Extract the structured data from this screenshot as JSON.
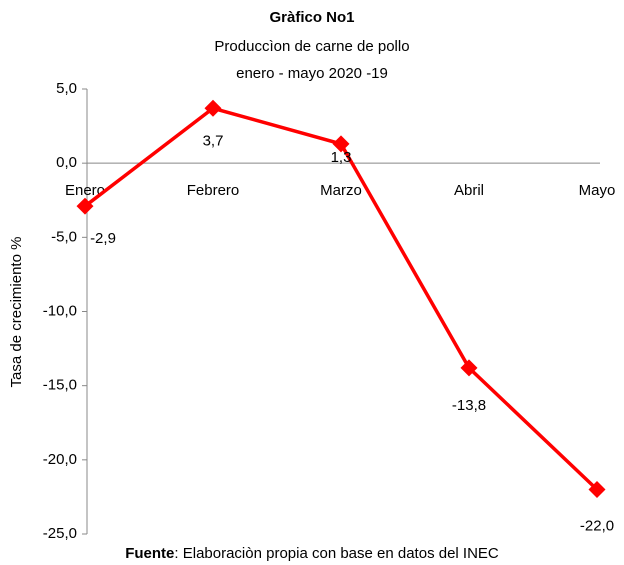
{
  "chart_data": {
    "type": "line",
    "title": "Gràfico No1",
    "subtitle": [
      "Produccìon de carne de pollo",
      "enero - mayo 2020 -19"
    ],
    "y_label": "Tasa de crecimiento %",
    "source_label": "Fuente",
    "source": ": Elaboraciòn propia con base en datos del INEC",
    "categories": [
      "Enero",
      "Febrero",
      "Marzo",
      "Abril",
      "Mayo"
    ],
    "series": [
      {
        "name": "Tasa de crecimiento",
        "color": "#ff0000",
        "values": [
          -2.9,
          3.7,
          1.3,
          -13.8,
          -22.0
        ],
        "value_labels": [
          "-2,9",
          "3,7",
          "1,3",
          "-13,8",
          "-22,0"
        ]
      }
    ],
    "ylim": [
      -25,
      5
    ],
    "yticks": [
      {
        "value": -25,
        "label": "-25,0"
      },
      {
        "value": -20,
        "label": "-20,0"
      },
      {
        "value": -15,
        "label": "-15,0"
      },
      {
        "value": -10,
        "label": "-10,0"
      },
      {
        "value": -5,
        "label": "-5,0"
      },
      {
        "value": 0,
        "label": "0,0"
      },
      {
        "value": 5,
        "label": "5,0"
      }
    ],
    "negative_tick_color": "#e00000",
    "grid": false
  }
}
